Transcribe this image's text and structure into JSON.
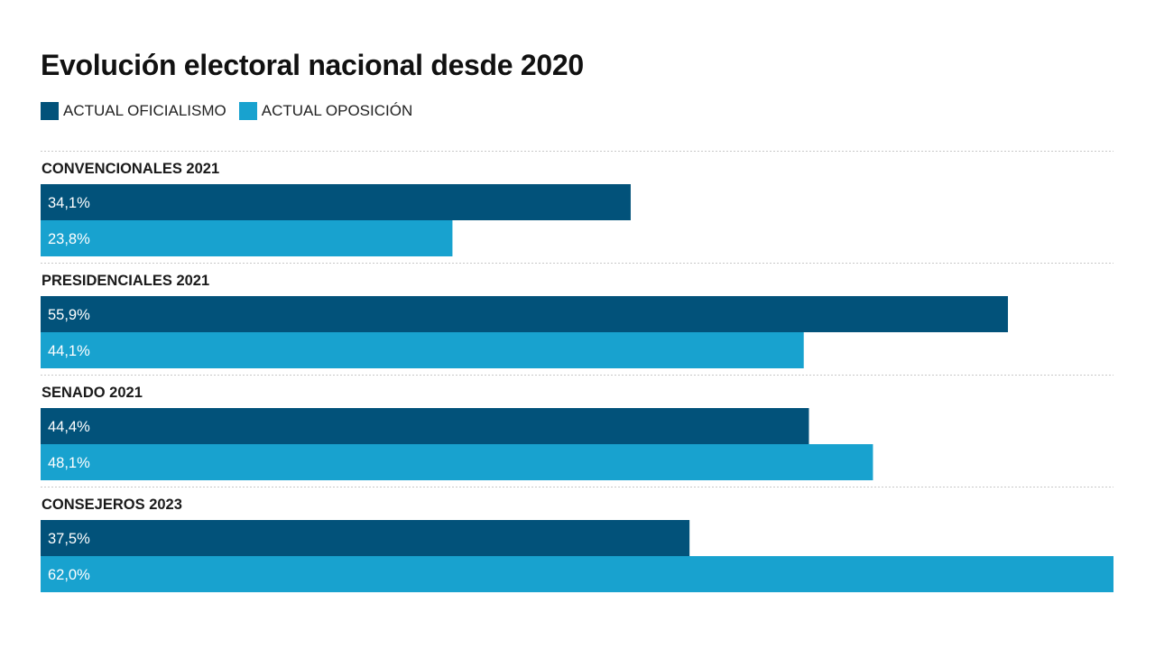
{
  "chart_data": {
    "type": "bar",
    "orientation": "horizontal",
    "title": "Evolución electoral nacional desde 2020",
    "categories": [
      "CONVENCIONALES 2021",
      "PRESIDENCIALES 2021",
      "SENADO 2021",
      "CONSEJEROS 2023"
    ],
    "series": [
      {
        "name": "ACTUAL OFICIALISMO",
        "color": "#02527a",
        "values": [
          34.1,
          55.9,
          44.4,
          37.5
        ],
        "labels": [
          "34,1%",
          "55,9%",
          "44,4%",
          "37,5%"
        ]
      },
      {
        "name": "ACTUAL OPOSICIÓN",
        "color": "#18a2cf",
        "values": [
          23.8,
          44.1,
          48.1,
          62.0
        ],
        "labels": [
          "23,8%",
          "44,1%",
          "48,1%",
          "62,0%"
        ]
      }
    ],
    "xlim": [
      0,
      62.0
    ],
    "legend_position": "top-left",
    "grid": false,
    "divider_style": "dotted"
  }
}
